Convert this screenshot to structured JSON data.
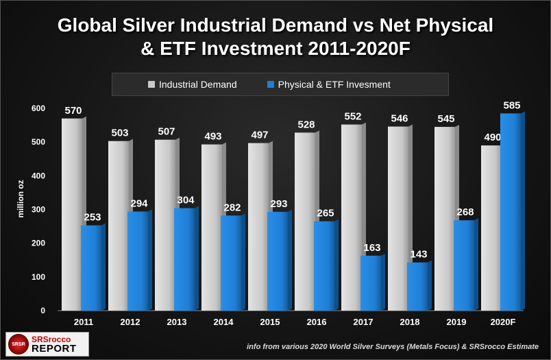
{
  "colors": {
    "industrial": "#c8c8c8",
    "investment": "#1f7fd6",
    "text": "#ffffff",
    "axis_text": "#ffffff"
  },
  "chart_data": {
    "type": "bar",
    "title_line1": "Global Silver Industrial Demand vs Net Physical",
    "title_line2": "& ETF Investment 2011-2020F",
    "ylabel": "million oz",
    "xlabel": "",
    "ylim": [
      0,
      600
    ],
    "yticks": [
      0,
      100,
      200,
      300,
      400,
      500,
      600
    ],
    "categories": [
      "2011",
      "2012",
      "2013",
      "2014",
      "2015",
      "2016",
      "2017",
      "2018",
      "2019",
      "2020F"
    ],
    "series": [
      {
        "name": "Industrial Demand",
        "values": [
          570,
          503,
          507,
          493,
          497,
          528,
          552,
          546,
          545,
          490
        ]
      },
      {
        "name": "Physical & ETF Invesment",
        "values": [
          253,
          294,
          304,
          282,
          293,
          265,
          163,
          143,
          268,
          585
        ]
      }
    ],
    "legend_position": "top-center",
    "grid": false
  },
  "footer": {
    "logo_seal": "SRSR",
    "logo_top": "SRSrocco",
    "logo_bottom": "REPORT",
    "source": "info from various 2020 World Silver Surveys (Metals Focus) & SRSrocco Estimate"
  }
}
